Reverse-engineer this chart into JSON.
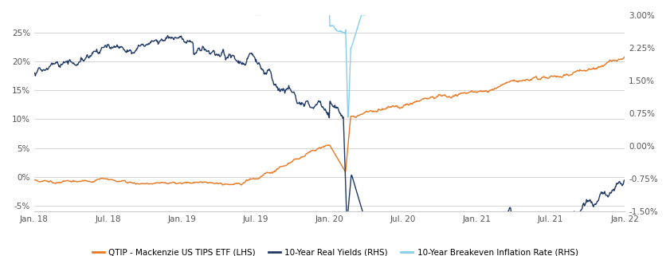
{
  "fig_width": 8.41,
  "fig_height": 3.21,
  "dpi": 100,
  "background_color": "#ffffff",
  "grid_color": "#cccccc",
  "lhs_ylim": [
    -0.06,
    0.28
  ],
  "rhs_ylim": [
    -0.009,
    0.0168
  ],
  "lhs_yticks": [
    -0.05,
    0.0,
    0.05,
    0.1,
    0.15,
    0.2,
    0.25
  ],
  "lhs_yticklabels": [
    "-5%",
    "0%",
    "5%",
    "10%",
    "15%",
    "20%",
    "25%"
  ],
  "rhs_yticks": [
    -0.009,
    -0.0045,
    0.0,
    0.0045,
    0.009,
    0.0135,
    0.018
  ],
  "rhs_yticklabels": [
    "-1.50%",
    "-0.75%",
    "0.00%",
    "0.75%",
    "1.50%",
    "2.25%",
    "3.00%"
  ],
  "legend_labels": [
    "QTIP - Mackenzie US TIPS ETF (LHS)",
    "10-Year Real Yields (RHS)",
    "10-Year Breakeven Inflation Rate (RHS)"
  ],
  "legend_colors": [
    "#E87722",
    "#1F3864",
    "#87CEEB"
  ],
  "qtip_color": "#E87722",
  "real_yields_color": "#1F3864",
  "breakeven_color": "#87CEEB",
  "line_width": 1.0,
  "xtick_labels": [
    "Jan. 18",
    "Jul. 18",
    "Jan. 19",
    "Jul. 19",
    "Jan. 20",
    "Jul. 20",
    "Jan. 21",
    "Jul. 21",
    "Jan. 22"
  ],
  "n_points": 1050
}
